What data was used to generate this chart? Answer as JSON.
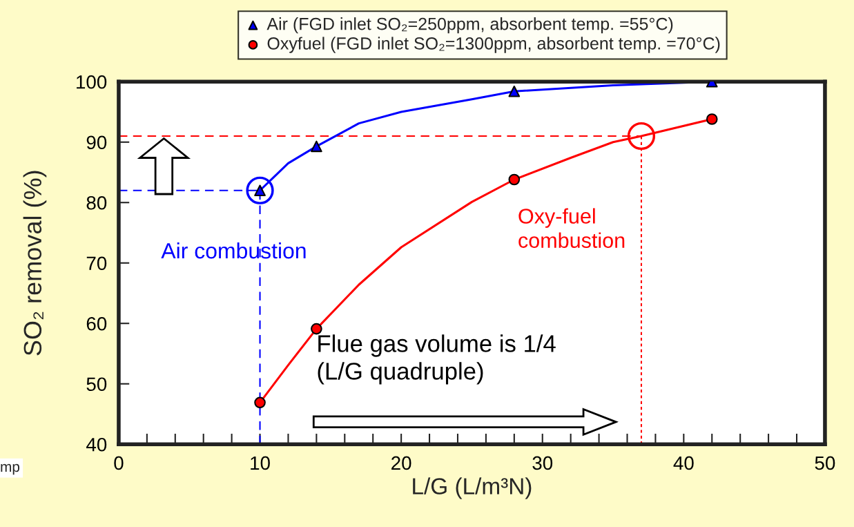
{
  "chart_data": {
    "type": "line",
    "xlabel": "L/G (L/m³N)",
    "ylabel": "SO₂ removal (%)",
    "xlim": [
      0,
      50
    ],
    "ylim": [
      40,
      100
    ],
    "xticks": [
      0,
      {
        "value": 2,
        "label": null
      },
      {
        "value": 4,
        "label": null
      },
      {
        "value": 6,
        "label": null
      },
      {
        "value": 8,
        "label": null
      },
      10,
      {
        "value": 12,
        "label": null
      },
      {
        "value": 14,
        "label": null
      },
      {
        "value": 16,
        "label": null
      },
      {
        "value": 18,
        "label": null
      },
      20,
      {
        "value": 22,
        "label": null
      },
      {
        "value": 24,
        "label": null
      },
      {
        "value": 26,
        "label": null
      },
      {
        "value": 28,
        "label": null
      },
      30,
      {
        "value": 32,
        "label": null
      },
      {
        "value": 34,
        "label": null
      },
      {
        "value": 36,
        "label": null
      },
      {
        "value": 38,
        "label": null
      },
      40,
      {
        "value": 42,
        "label": null
      },
      {
        "value": 44,
        "label": null
      },
      {
        "value": 46,
        "label": null
      },
      {
        "value": 48,
        "label": null
      },
      50
    ],
    "yticks": [
      40,
      50,
      60,
      70,
      80,
      90,
      100
    ],
    "grid": false,
    "legend": "top",
    "series": [
      {
        "type": "line",
        "color": "#0000ff",
        "line_style": "dashed",
        "x": [
          0,
          10
        ],
        "values": [
          82,
          82
        ]
      },
      {
        "type": "line",
        "color": "#0000ff",
        "line_style": "dashed",
        "x": [
          10,
          10
        ],
        "values": [
          40,
          82
        ]
      },
      {
        "type": "line",
        "color": "#ff0000",
        "line_style": "dashed",
        "x": [
          0,
          37
        ],
        "values": [
          91,
          91
        ]
      },
      {
        "type": "line",
        "color": "#ff0000",
        "line_style": "dotted",
        "x": [
          37,
          37
        ],
        "values": [
          40,
          91
        ]
      },
      {
        "color": "#0000ff",
        "line_style": "solid",
        "x": [
          10,
          12,
          14,
          17,
          20,
          25,
          28,
          35,
          42
        ],
        "values": [
          82,
          86.5,
          89.3,
          93.1,
          95,
          97.1,
          98.4,
          99.4,
          100
        ]
      },
      {
        "color": "#ff0000",
        "line_style": "solid",
        "x": [
          10,
          12,
          14,
          17,
          20,
          25,
          28,
          32,
          35,
          37,
          42
        ],
        "values": [
          46.9,
          53.1,
          59.1,
          66.4,
          72.6,
          80.1,
          83.8,
          87.4,
          90,
          91,
          93.8
        ]
      },
      {
        "type": "scatter",
        "name": "Air (FGD inlet SO₂=250ppm, absorbent temp. =55°C)",
        "color": "#0000ff",
        "marker": "triangle",
        "x": [
          10,
          14,
          28,
          42
        ],
        "values": [
          82,
          89.3,
          98.4,
          100
        ]
      },
      {
        "type": "scatter",
        "name": "Oxyfuel (FGD inlet SO₂=1300ppm, absorbent temp. =70°C)",
        "color": "#ff0000",
        "marker": "circle",
        "x": [
          10,
          14,
          28,
          42
        ],
        "values": [
          46.9,
          59.1,
          83.8,
          93.8
        ]
      },
      {
        "type": "scatter",
        "color": "#0000ff",
        "marker": "circle",
        "x": [
          10
        ],
        "values": [
          82
        ]
      },
      {
        "type": "scatter",
        "color": "#ff0000",
        "marker": "circle",
        "x": [
          37
        ],
        "values": [
          91
        ]
      }
    ],
    "annotations": [
      "Air combustion",
      "Oxy-fuel\ncombustion",
      "Flue gas volume is 1/4\n(L/G quadruple)",
      "mp"
    ]
  }
}
